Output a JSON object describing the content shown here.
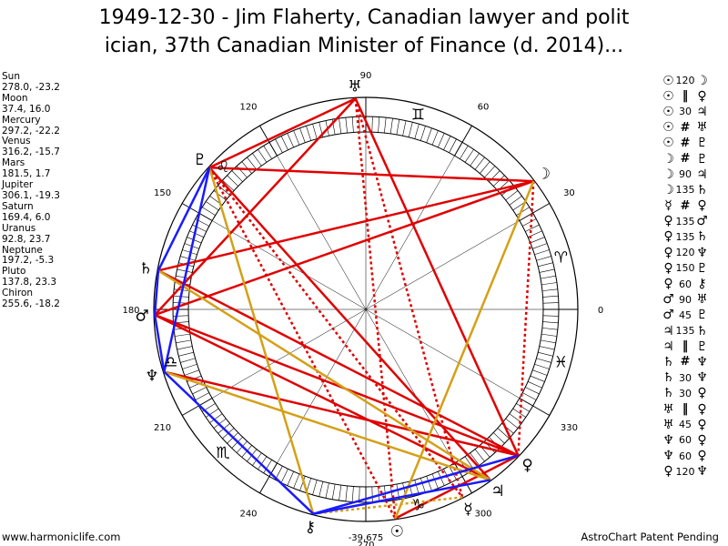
{
  "title": {
    "line1": "1949-12-30 - Jim Flaherty, Canadian lawyer and polit",
    "line2": "ician, 37th Canadian Minister of Finance (d. 2014)..."
  },
  "planets": [
    {
      "name": "Sun",
      "glyph": "☉",
      "pos": "278.0, -23.2",
      "lon": 278.0
    },
    {
      "name": "Moon",
      "glyph": "☽",
      "pos": "37.4, 16.0",
      "lon": 37.4
    },
    {
      "name": "Mercury",
      "glyph": "☿",
      "pos": "297.2, -22.2",
      "lon": 297.2
    },
    {
      "name": "Venus",
      "glyph": "♀",
      "pos": "316.2, -15.7",
      "lon": 316.2
    },
    {
      "name": "Mars",
      "glyph": "♂",
      "pos": "181.5, 1.7",
      "lon": 181.5
    },
    {
      "name": "Jupiter",
      "glyph": "♃",
      "pos": "306.1, -19.3",
      "lon": 306.1
    },
    {
      "name": "Saturn",
      "glyph": "♄",
      "pos": "169.4, 6.0",
      "lon": 169.4
    },
    {
      "name": "Uranus",
      "glyph": "♅",
      "pos": "92.8, 23.7",
      "lon": 92.8
    },
    {
      "name": "Neptune",
      "glyph": "♆",
      "pos": "197.2, -5.3",
      "lon": 197.2
    },
    {
      "name": "Pluto",
      "glyph": "♇",
      "pos": "137.8, 23.3",
      "lon": 137.8
    },
    {
      "name": "Chiron",
      "glyph": "⚷",
      "pos": "255.6, -18.2",
      "lon": 255.6
    }
  ],
  "aspect_list": [
    {
      "p1": "☉",
      "aspect": "120",
      "p2": "☽"
    },
    {
      "p1": "☉",
      "aspect": "‖",
      "p2": "♀"
    },
    {
      "p1": "☉",
      "aspect": "30",
      "p2": "♃"
    },
    {
      "p1": "☉",
      "aspect": "#",
      "p2": "♅"
    },
    {
      "p1": "☉",
      "aspect": "#",
      "p2": "♇"
    },
    {
      "p1": "☽",
      "aspect": "#",
      "p2": "♇"
    },
    {
      "p1": "☽",
      "aspect": "90",
      "p2": "♃"
    },
    {
      "p1": "☽",
      "aspect": "135",
      "p2": "♄"
    },
    {
      "p1": "☿",
      "aspect": "#",
      "p2": "♀"
    },
    {
      "p1": "♀",
      "aspect": "135",
      "p2": "♂"
    },
    {
      "p1": "♀",
      "aspect": "135",
      "p2": "♄"
    },
    {
      "p1": "♀",
      "aspect": "120",
      "p2": "♆"
    },
    {
      "p1": "♀",
      "aspect": "150",
      "p2": "♇"
    },
    {
      "p1": "♀",
      "aspect": "60",
      "p2": "⚷"
    },
    {
      "p1": "♂",
      "aspect": "90",
      "p2": "♅"
    },
    {
      "p1": "♂",
      "aspect": "45",
      "p2": "♇"
    },
    {
      "p1": "♃",
      "aspect": "135",
      "p2": "♄"
    },
    {
      "p1": "♃",
      "aspect": "‖",
      "p2": "♇"
    },
    {
      "p1": "♄",
      "aspect": "#",
      "p2": "♆"
    },
    {
      "p1": "♄",
      "aspect": "30",
      "p2": "♆"
    },
    {
      "p1": "♄",
      "aspect": "30",
      "p2": "♀"
    },
    {
      "p1": "♅",
      "aspect": "‖",
      "p2": "♀"
    },
    {
      "p1": "♅",
      "aspect": "45",
      "p2": "♀"
    },
    {
      "p1": "♆",
      "aspect": "60",
      "p2": "♀"
    },
    {
      "p1": "♆",
      "aspect": "60",
      "p2": "♀"
    },
    {
      "p1": "♀",
      "aspect": "120",
      "p2": "♆"
    }
  ],
  "degree_labels": [
    "0",
    "30",
    "60",
    "90",
    "120",
    "150",
    "180",
    "210",
    "240",
    "270",
    "300",
    "330"
  ],
  "zodiac_signs": [
    {
      "glyph": "♈",
      "lon": 15
    },
    {
      "glyph": "♊",
      "lon": 75
    },
    {
      "glyph": "♌",
      "lon": 135
    },
    {
      "glyph": "♎",
      "lon": 195
    },
    {
      "glyph": "♏",
      "lon": 225
    },
    {
      "glyph": "♑",
      "lon": 285
    },
    {
      "glyph": "♓",
      "lon": 345
    }
  ],
  "aspect_lines": [
    {
      "a": "Uranus",
      "b": "Venus",
      "color": "#e00000",
      "style": "solid"
    },
    {
      "a": "Uranus",
      "b": "Pluto",
      "color": "#e00000",
      "style": "solid"
    },
    {
      "a": "Uranus",
      "b": "Mars",
      "color": "#e00000",
      "style": "solid"
    },
    {
      "a": "Moon",
      "b": "Pluto",
      "color": "#e00000",
      "style": "solid"
    },
    {
      "a": "Moon",
      "b": "Saturn",
      "color": "#e00000",
      "style": "solid"
    },
    {
      "a": "Moon",
      "b": "Mars",
      "color": "#e00000",
      "style": "solid"
    },
    {
      "a": "Pluto",
      "b": "Jupiter",
      "color": "#e00000",
      "style": "solid"
    },
    {
      "a": "Saturn",
      "b": "Venus",
      "color": "#e00000",
      "style": "solid"
    },
    {
      "a": "Mars",
      "b": "Venus",
      "color": "#e00000",
      "style": "solid"
    },
    {
      "a": "Mars",
      "b": "Jupiter",
      "color": "#e00000",
      "style": "solid"
    },
    {
      "a": "Neptune",
      "b": "Venus",
      "color": "#e00000",
      "style": "solid"
    },
    {
      "a": "Sun",
      "b": "Venus",
      "color": "#e00000",
      "style": "solid"
    },
    {
      "a": "Uranus",
      "b": "Sun",
      "color": "#e00000",
      "style": "dotted"
    },
    {
      "a": "Uranus",
      "b": "Mercury",
      "color": "#e00000",
      "style": "dotted"
    },
    {
      "a": "Pluto",
      "b": "Sun",
      "color": "#e00000",
      "style": "dotted"
    },
    {
      "a": "Pluto",
      "b": "Mercury",
      "color": "#e00000",
      "style": "dotted"
    },
    {
      "a": "Moon",
      "b": "Venus",
      "color": "#e00000",
      "style": "dotted"
    },
    {
      "a": "Pluto",
      "b": "Chiron",
      "color": "#d4a017",
      "style": "solid"
    },
    {
      "a": "Moon",
      "b": "Sun",
      "color": "#d4a017",
      "style": "solid"
    },
    {
      "a": "Neptune",
      "b": "Jupiter",
      "color": "#d4a017",
      "style": "solid"
    },
    {
      "a": "Saturn",
      "b": "Jupiter",
      "color": "#d4a017",
      "style": "solid"
    },
    {
      "a": "Chiron",
      "b": "Mercury",
      "color": "#d4a017",
      "style": "dotted"
    },
    {
      "a": "Pluto",
      "b": "Saturn",
      "color": "#1a1aff",
      "style": "solid"
    },
    {
      "a": "Pluto",
      "b": "Neptune",
      "color": "#1a1aff",
      "style": "solid"
    },
    {
      "a": "Saturn",
      "b": "Mars",
      "color": "#1a1aff",
      "style": "solid"
    },
    {
      "a": "Neptune",
      "b": "Mars",
      "color": "#1a1aff",
      "style": "solid"
    },
    {
      "a": "Neptune",
      "b": "Chiron",
      "color": "#1a1aff",
      "style": "solid"
    },
    {
      "a": "Chiron",
      "b": "Venus",
      "color": "#1a1aff",
      "style": "solid"
    },
    {
      "a": "Chiron",
      "b": "Jupiter",
      "color": "#1a1aff",
      "style": "solid"
    }
  ],
  "footer": {
    "left": "www.harmoniclife.com",
    "center": "-39,675",
    "right": "AstroChart Patent Pending"
  }
}
